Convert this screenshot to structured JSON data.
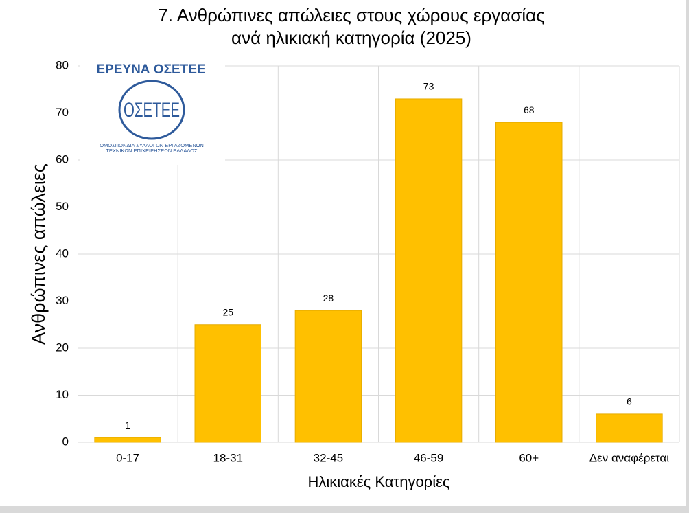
{
  "chart_data": {
    "type": "bar",
    "title": [
      "7. Ανθρώπινες απώλειες στους χώρους εργασίας",
      "ανά ηλικιακή κατηγορία (2025)"
    ],
    "x_label": "Ηλικιακές Κατηγορίες",
    "y_label": "Ανθρώπινες απώλειες",
    "categories": [
      "0-17",
      "18-31",
      "32-45",
      "46-59",
      "60+",
      "Δεν αναφέρεται"
    ],
    "values": [
      1,
      25,
      28,
      73,
      68,
      6
    ],
    "color": "#ffc000",
    "ylim": [
      0,
      80
    ],
    "yticks": [
      0,
      10,
      20,
      30,
      40,
      50,
      60,
      70,
      80
    ],
    "grid": true
  },
  "logo": {
    "heading": "ΕΡΕΥΝΑ ΟΣΕΤΕΕ",
    "mark": "ΟΣΕΤΕΕ",
    "caption": [
      "ΟΜΟΣΠΟΝΔΙΑ ΣΥΛΛΟΓΩΝ ΕΡΓΑΖΟΜΕΝΩΝ",
      "ΤΕΧΝΙΚΩΝ ΕΠΙΧΕΙΡΗΣΕΩΝ ΕΛΛΑΔΟΣ"
    ]
  }
}
